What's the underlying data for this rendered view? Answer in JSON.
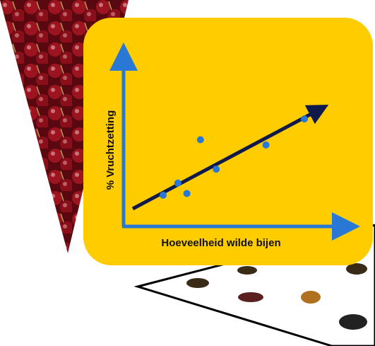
{
  "chart_data": {
    "type": "scatter",
    "x_label": "Hoeveelheid wilde bijen",
    "y_label": "% Vruchtzetting",
    "x": [
      1.75,
      2.4,
      2.8,
      3.4,
      4.1,
      6.3,
      8.0
    ],
    "values": [
      1.8,
      2.5,
      1.9,
      5.0,
      3.3,
      4.7,
      6.2
    ],
    "color": "#2a78d6",
    "xlim": [
      0,
      10
    ],
    "ylim": [
      0,
      10
    ]
  }
}
